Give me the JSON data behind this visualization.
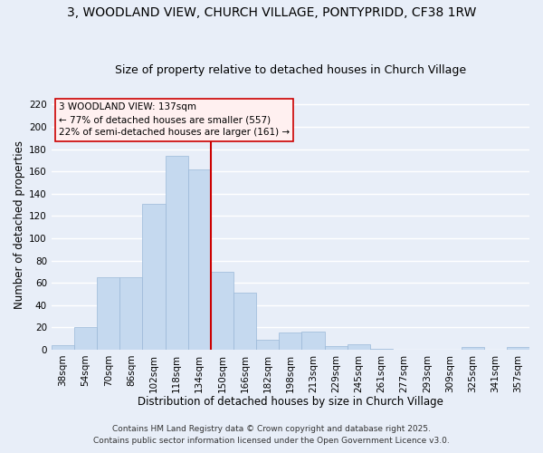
{
  "title": "3, WOODLAND VIEW, CHURCH VILLAGE, PONTYPRIDD, CF38 1RW",
  "subtitle": "Size of property relative to detached houses in Church Village",
  "xlabel": "Distribution of detached houses by size in Church Village",
  "ylabel": "Number of detached properties",
  "bar_color": "#c5d9ef",
  "bar_edge_color": "#9ab8d8",
  "bg_color": "#e8eef8",
  "grid_color": "white",
  "bin_labels": [
    "38sqm",
    "54sqm",
    "70sqm",
    "86sqm",
    "102sqm",
    "118sqm",
    "134sqm",
    "150sqm",
    "166sqm",
    "182sqm",
    "198sqm",
    "213sqm",
    "229sqm",
    "245sqm",
    "261sqm",
    "277sqm",
    "293sqm",
    "309sqm",
    "325sqm",
    "341sqm",
    "357sqm"
  ],
  "bar_heights": [
    4,
    20,
    65,
    65,
    131,
    174,
    162,
    70,
    51,
    9,
    15,
    16,
    3,
    5,
    1,
    0,
    0,
    0,
    2,
    0,
    2
  ],
  "vline_color": "#cc0000",
  "annotation_line1": "3 WOODLAND VIEW: 137sqm",
  "annotation_line2": "← 77% of detached houses are smaller (557)",
  "annotation_line3": "22% of semi-detached houses are larger (161) →",
  "annotation_box_facecolor": "#fff0f0",
  "annotation_box_edgecolor": "#cc0000",
  "ylim": [
    0,
    225
  ],
  "yticks": [
    0,
    20,
    40,
    60,
    80,
    100,
    120,
    140,
    160,
    180,
    200,
    220
  ],
  "footer1": "Contains HM Land Registry data © Crown copyright and database right 2025.",
  "footer2": "Contains public sector information licensed under the Open Government Licence v3.0.",
  "title_fontsize": 10,
  "subtitle_fontsize": 9,
  "tick_fontsize": 7.5,
  "label_fontsize": 8.5,
  "annotation_fontsize": 7.5,
  "footer_fontsize": 6.5
}
